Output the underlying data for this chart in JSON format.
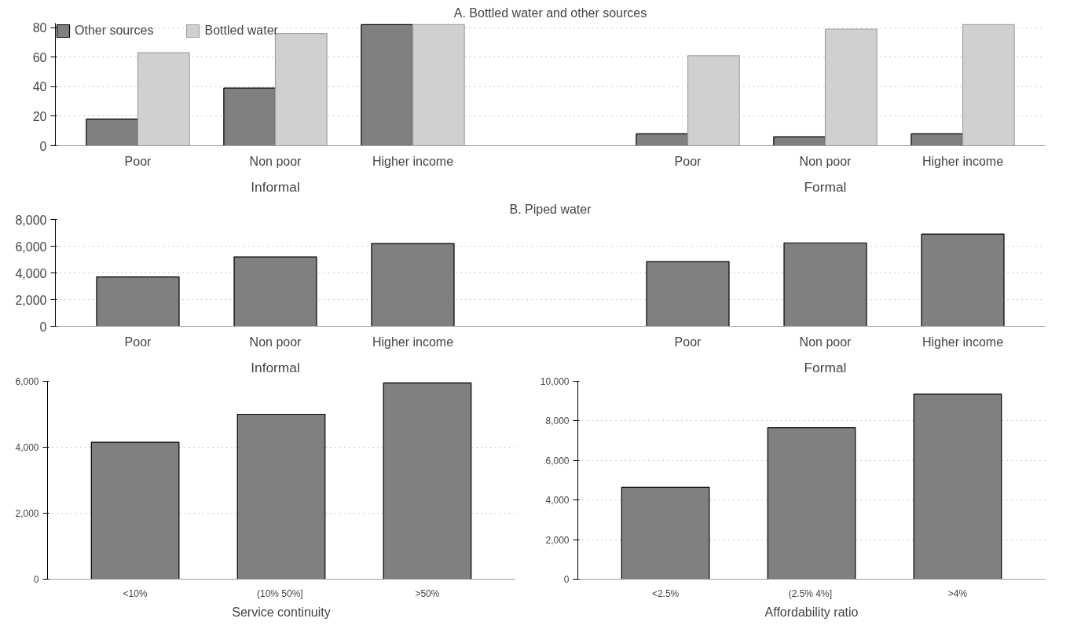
{
  "chart_data": [
    {
      "type": "bar",
      "title": "A. Bottled water and other sources",
      "categories": [
        "Poor",
        "Non poor",
        "Higher income",
        null,
        "Poor",
        "Non poor",
        "Higher income"
      ],
      "series": [
        {
          "name": "Other sources",
          "color": "#808080",
          "values": [
            18,
            39,
            82,
            null,
            8,
            6,
            8
          ]
        },
        {
          "name": "Bottled water",
          "color": "#d0d0d0",
          "values": [
            63,
            76,
            82,
            null,
            61,
            79,
            82
          ]
        }
      ],
      "annotations": [
        "Informal",
        "Formal"
      ],
      "ylim": [
        0,
        83
      ],
      "yticks": [
        0,
        20,
        40,
        60,
        80
      ],
      "grid": "y",
      "legend": "top left"
    },
    {
      "type": "bar",
      "title": "B. Piped water",
      "categories": [
        "Poor",
        "Non poor",
        "Higher income",
        null,
        "Poor",
        "Non poor",
        "Higher income"
      ],
      "series": [
        {
          "color": "#808080",
          "values": [
            3700,
            5200,
            6200,
            null,
            4850,
            6250,
            6900
          ]
        }
      ],
      "annotations": [
        "Informal",
        "Formal"
      ],
      "ylim": [
        0,
        8000
      ],
      "yticks": [
        {
          "value": 0,
          "label": "0"
        },
        {
          "value": 2000,
          "label": "2,000"
        },
        {
          "value": 4000,
          "label": "4,000"
        },
        {
          "value": 6000,
          "label": "6,000"
        },
        {
          "value": 8000,
          "label": "8,000"
        }
      ],
      "grid": "y"
    },
    {
      "type": "bar",
      "xlabel": "Service continuity",
      "categories": [
        "<10%",
        "(10%  50%]",
        ">50%"
      ],
      "series": [
        {
          "color": "#808080",
          "values": [
            4150,
            5000,
            5950
          ]
        }
      ],
      "ylim": [
        0,
        6000
      ],
      "yticks": [
        {
          "value": 0,
          "label": "0"
        },
        {
          "value": 2000,
          "label": "2,000"
        },
        {
          "value": 4000,
          "label": "4,000"
        },
        {
          "value": 6000,
          "label": "6,000"
        }
      ],
      "grid": "y"
    },
    {
      "type": "bar",
      "xlabel": "Affordability ratio",
      "categories": [
        "<2.5%",
        "(2.5%  4%]",
        ">4%"
      ],
      "series": [
        {
          "color": "#808080",
          "values": [
            4650,
            7650,
            9350
          ]
        }
      ],
      "ylim": [
        0,
        10000
      ],
      "yticks": [
        {
          "value": 0,
          "label": "0"
        },
        {
          "value": 2000,
          "label": "2,000"
        },
        {
          "value": 4000,
          "label": "4,000"
        },
        {
          "value": 6000,
          "label": "6,000"
        },
        {
          "value": 8000,
          "label": "8,000"
        },
        {
          "value": 10000,
          "label": "10,000"
        }
      ],
      "grid": "y"
    }
  ]
}
